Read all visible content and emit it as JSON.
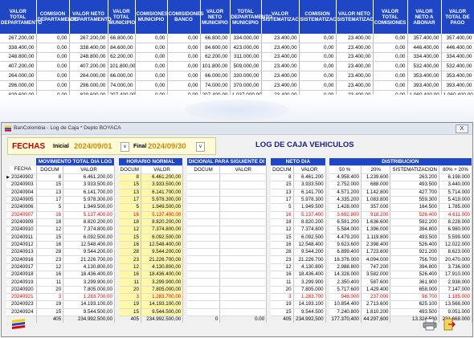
{
  "bg_table": {
    "headers": [
      "VALOR TOTAL DEPARTAMENTO",
      "COMISION DEPARTAMENTO",
      "VALOR NETO DEPARTAMENTO",
      "VALOR TOTAL MUNICIPIO",
      "COMISIONES MUNICIPIO",
      "COMISIDONES BANCO",
      "VALOR NETO MUNICIPIO",
      "TOTAL DEPARTAMENTO MUNICIPIO",
      "VALOR SISTEMATIZAC",
      "COMISION SISTEMATIZAC",
      "VALOR NETO SISTEMATIZAC",
      "VALOR TOTAL COMISIONES",
      "VALOR NETO A ABONAR",
      "VALOR TOTAL DE PAGO"
    ],
    "rows": [
      [
        "267.200,00",
        "0,00",
        "267.200,00",
        "66.800,00",
        "0,00",
        "0,00",
        "66.800,00",
        "334.000,00",
        "23.400,00",
        "0,00",
        "23.400,00",
        "0,00",
        "357.400,00",
        "357.400,00"
      ],
      [
        "338.400,00",
        "0,00",
        "338.400,00",
        "84.600,00",
        "0,00",
        "0,00",
        "84.600,00",
        "423.000,00",
        "23.400,00",
        "0,00",
        "23.400,00",
        "0,00",
        "446.400,00",
        "446.400,00"
      ],
      [
        "248.800,00",
        "0,00",
        "248.800,00",
        "62.200,00",
        "0,00",
        "0,00",
        "62.200,00",
        "311.000,00",
        "23.400,00",
        "0,00",
        "23.400,00",
        "0,00",
        "334.400,00",
        "334.400,00"
      ],
      [
        "407.200,00",
        "0,00",
        "407.200,00",
        "101.800,00",
        "0,00",
        "0,00",
        "101.800,00",
        "509.000,00",
        "23.400,00",
        "0,00",
        "23.400,00",
        "0,00",
        "532.400,00",
        "532.400,00"
      ],
      [
        "264.000,00",
        "0,00",
        "264.000,00",
        "66.000,00",
        "0,00",
        "0,00",
        "66.000,00",
        "330.000,00",
        "23.400,00",
        "0,00",
        "23.400,00",
        "0,00",
        "353.400,00",
        "353.400,00"
      ],
      [
        "296.000,00",
        "0,00",
        "296.000,00",
        "74.000,00",
        "0,00",
        "0,00",
        "74.000,00",
        "370.000,00",
        "23.400,00",
        "0,00",
        "23.400,00",
        "0,00",
        "393.400,00",
        "393.400,00"
      ],
      [
        "829.600,00",
        "0,00",
        "829.600,00",
        "207.400,00",
        "0,00",
        "0,00",
        "207.400,00",
        "1.037.000,00",
        "23.400,00",
        "0,00",
        "23.400,00",
        "0,00",
        "1.060.400,00",
        "1.060.400,00"
      ]
    ]
  },
  "window": {
    "title": "BanColombia - Log de Caja * Depto BOYACA",
    "close_label": "X"
  },
  "filters": {
    "label": "FECHAS",
    "start_label": "Inicial",
    "start_value": "2024/09/01",
    "end_label": "Final",
    "end_value": "2024/09/30",
    "dropdown_glyph": "v"
  },
  "report_title": "LOG DE CAJA VEHICULOS",
  "grid": {
    "group_headers": [
      "MOVIMIENTO TOTAL DIA LOG",
      "HORARIO NORMAL",
      "DICIONAL PARA SIGUIENTE DI",
      "NETO DIA",
      "DISTRIBUCION"
    ],
    "sub_headers": {
      "fecha": "FECHA",
      "docum": "DOCUM",
      "valor": "VALOR",
      "p50": "50 %",
      "p20": "20%",
      "sist": "SISTEMATIZACION",
      "p8020": "80% + 20%"
    },
    "rows": [
      {
        "fecha": "20240902",
        "mt_doc": "8",
        "mt_val": "6.461.200,00",
        "hn_doc": "8",
        "hn_val": "6.461.200,00",
        "ad_doc": "",
        "ad_val": "",
        "nd_doc": "8",
        "nd_val": "6.461.200",
        "d50": "4.958.400",
        "d20": "1.239.600",
        "dsis": "263.200",
        "d8020": "6.198.000",
        "red": false,
        "current": true
      },
      {
        "fecha": "20240903",
        "mt_doc": "15",
        "mt_val": "3.933.500,00",
        "hn_doc": "15",
        "hn_val": "3.933.500,00",
        "ad_doc": "",
        "ad_val": "",
        "nd_doc": "15",
        "nd_val": "3.933.500",
        "d50": "2.752.000",
        "d20": "688.000",
        "dsis": "493.500",
        "d8020": "3.440.000",
        "red": false,
        "current": false
      },
      {
        "fecha": "20240904",
        "mt_doc": "13",
        "mt_val": "6.141.700,00",
        "hn_doc": "13",
        "hn_val": "6.141.700,00",
        "ad_doc": "",
        "ad_val": "",
        "nd_doc": "13",
        "nd_val": "6.141.700",
        "d50": "4.571.200",
        "d20": "1.142.800",
        "dsis": "427.700",
        "d8020": "5.714.000",
        "red": false,
        "current": false
      },
      {
        "fecha": "20240905",
        "mt_doc": "17",
        "mt_val": "5.978.300,00",
        "hn_doc": "17",
        "hn_val": "5.978.300,00",
        "ad_doc": "",
        "ad_val": "",
        "nd_doc": "17",
        "nd_val": "5.978.300",
        "d50": "4.335.200",
        "d20": "1.083.800",
        "dsis": "559.300",
        "d8020": "5.419.000",
        "red": false,
        "current": false
      },
      {
        "fecha": "20240906",
        "mt_doc": "5",
        "mt_val": "1.949.500,00",
        "hn_doc": "5",
        "hn_val": "1.949.500,00",
        "ad_doc": "",
        "ad_val": "",
        "nd_doc": "5",
        "nd_val": "1.949.500",
        "d50": "1.428.000",
        "d20": "357.000",
        "dsis": "164.500",
        "d8020": "1.785.000",
        "red": false,
        "current": false
      },
      {
        "fecha": "20240907",
        "mt_doc": "16",
        "mt_val": "5.137.400,00",
        "hn_doc": "16",
        "hn_val": "5.137.400,00",
        "ad_doc": "",
        "ad_val": "",
        "nd_doc": "16",
        "nd_val": "5.137.400",
        "d50": "3.692.800",
        "d20": "918.200",
        "dsis": "526.400",
        "d8020": "4.611.000",
        "red": true,
        "current": false
      },
      {
        "fecha": "20240909",
        "mt_doc": "18",
        "mt_val": "8.820.200,00",
        "hn_doc": "18",
        "hn_val": "8.820.200,00",
        "ad_doc": "",
        "ad_val": "",
        "nd_doc": "18",
        "nd_val": "8.820.200",
        "d50": "6.591.200",
        "d20": "1.636.600",
        "dsis": "592.200",
        "d8020": "8.228.000",
        "red": false,
        "current": false
      },
      {
        "fecha": "20240910",
        "mt_doc": "12",
        "mt_val": "7.374.800,00",
        "hn_doc": "12",
        "hn_val": "7.374.800,00",
        "ad_doc": "",
        "ad_val": "",
        "nd_doc": "12",
        "nd_val": "7.374.800",
        "d50": "5.584.000",
        "d20": "1.396.000",
        "dsis": "394.800",
        "d8020": "6.980.000",
        "red": false,
        "current": false
      },
      {
        "fecha": "20240911",
        "mt_doc": "15",
        "mt_val": "6.092.500,00",
        "hn_doc": "15",
        "hn_val": "6.092.500,00",
        "ad_doc": "",
        "ad_val": "",
        "nd_doc": "15",
        "nd_val": "6.092.500",
        "d50": "4.479.200",
        "d20": "1.119.800",
        "dsis": "493.500",
        "d8020": "5.599.000",
        "red": false,
        "current": false
      },
      {
        "fecha": "20240912",
        "mt_doc": "16",
        "mt_val": "12.548.400,00",
        "hn_doc": "16",
        "hn_val": "12.548.400,00",
        "ad_doc": "",
        "ad_val": "",
        "nd_doc": "16",
        "nd_val": "12.548.400",
        "d50": "9.623.600",
        "d20": "2.398.400",
        "dsis": "526.400",
        "d8020": "12.022.000",
        "red": false,
        "current": false
      },
      {
        "fecha": "20240913",
        "mt_doc": "28",
        "mt_val": "9.544.200,00",
        "hn_doc": "28",
        "hn_val": "9.544.200,00",
        "ad_doc": "",
        "ad_val": "",
        "nd_doc": "28",
        "nd_val": "9.544.200",
        "d50": "6.899.400",
        "d20": "1.723.600",
        "dsis": "921.200",
        "d8020": "8.623.000",
        "red": false,
        "current": false
      },
      {
        "fecha": "20240916",
        "mt_doc": "23",
        "mt_val": "21.226.700,00",
        "hn_doc": "23",
        "hn_val": "21.226.700,00",
        "ad_doc": "",
        "ad_val": "",
        "nd_doc": "23",
        "nd_val": "21.226.700",
        "d50": "16.376.000",
        "d20": "4.094.000",
        "dsis": "756.700",
        "d8020": "20.470.000",
        "red": false,
        "current": false
      },
      {
        "fecha": "20240917",
        "mt_doc": "12",
        "mt_val": "4.130.800,00",
        "hn_doc": "12",
        "hn_val": "4.130.800,00",
        "ad_doc": "",
        "ad_val": "",
        "nd_doc": "12",
        "nd_val": "4.130.800",
        "d50": "2.988.800",
        "d20": "747.200",
        "dsis": "394.800",
        "d8020": "3.736.000",
        "red": false,
        "current": false
      },
      {
        "fecha": "20240918",
        "mt_doc": "16",
        "mt_val": "18.436.400,00",
        "hn_doc": "16",
        "hn_val": "18.436.400,00",
        "ad_doc": "",
        "ad_val": "",
        "nd_doc": "16",
        "nd_val": "18.436.400",
        "d50": "14.328.000",
        "d20": "3.582.000",
        "dsis": "526.400",
        "d8020": "17.910.000",
        "red": false,
        "current": false
      },
      {
        "fecha": "20240919",
        "mt_doc": "11",
        "mt_val": "3.299.900,00",
        "hn_doc": "11",
        "hn_val": "3.299.900,00",
        "ad_doc": "",
        "ad_val": "",
        "nd_doc": "11",
        "nd_val": "3.299.900",
        "d50": "2.350.400",
        "d20": "587.600",
        "dsis": "361.900",
        "d8020": "2.938.000",
        "red": false,
        "current": false
      },
      {
        "fecha": "20240920",
        "mt_doc": "20",
        "mt_val": "7.805.000,00",
        "hn_doc": "20",
        "hn_val": "7.805.000,00",
        "ad_doc": "",
        "ad_val": "",
        "nd_doc": "20",
        "nd_val": "7.805.000",
        "d50": "5.717.600",
        "d20": "1.429.400",
        "dsis": "658.000",
        "d8020": "7.147.000",
        "red": false,
        "current": false
      },
      {
        "fecha": "20240921",
        "mt_doc": "3",
        "mt_val": "1.283.700,00",
        "hn_doc": "3",
        "hn_val": "1.283.700,00",
        "ad_doc": "",
        "ad_val": "",
        "nd_doc": "3",
        "nd_val": "1.283.700",
        "d50": "948.000",
        "d20": "237.000",
        "dsis": "98.700",
        "d8020": "1.185.000",
        "red": true,
        "current": false
      },
      {
        "fecha": "20240923",
        "mt_doc": "19",
        "mt_val": "14.193.100,00",
        "hn_doc": "19",
        "hn_val": "14.193.100,00",
        "ad_doc": "",
        "ad_val": "",
        "nd_doc": "19",
        "nd_val": "14.193.100",
        "d50": "10.854.400",
        "d20": "2.713.600",
        "dsis": "625.100",
        "d8020": "13.568.000",
        "red": false,
        "current": false
      },
      {
        "fecha": "20240924",
        "mt_doc": "15",
        "mt_val": "9.544.500,00",
        "hn_doc": "15",
        "hn_val": "9.544.500,00",
        "ad_doc": "",
        "ad_val": "",
        "nd_doc": "15",
        "nd_val": "9.544.500",
        "d50": "7.240.800",
        "d20": "1.810.200",
        "dsis": "493.500",
        "d8020": "9.051.000",
        "red": false,
        "current": false
      }
    ],
    "totals": {
      "mt_doc": "405",
      "mt_val": "234.992.500,00",
      "hn_doc": "405",
      "hn_val": "234.992.500,00",
      "ad_doc": "0",
      "ad_val": "0.00",
      "nd_doc": "405",
      "nd_val": "234.992,500",
      "d50": "177.370,400",
      "d20": "44.297,600",
      "dsis": "13.324,500",
      "d8020": "221.668.000"
    }
  },
  "colors": {
    "header_blue": "#1f46c4",
    "title_red": "#c00000",
    "date_orange": "#d08a00",
    "highlight_yellow": "#fff8a8",
    "row_red": "#e00000"
  },
  "icons": {
    "window_icon": "bancolombia-logo-icon",
    "logo": "bancolombia-logo-icon",
    "print": "printer-icon",
    "exit": "exit-door-icon"
  }
}
